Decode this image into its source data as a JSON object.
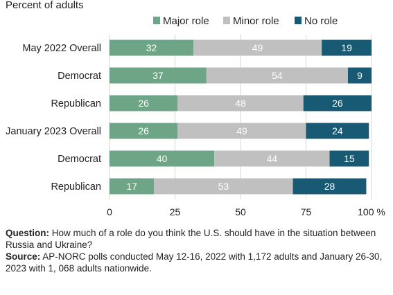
{
  "chart_data": {
    "type": "bar",
    "orientation": "horizontal",
    "stacked": true,
    "subtitle": "Percent of adults",
    "categories": [
      "May  2022 Overall",
      "Democrat",
      "Republican",
      "January 2023 Overall",
      "Democrat",
      "Republican"
    ],
    "series": [
      {
        "name": "Major role",
        "color": "#6fa587",
        "values": [
          32,
          37,
          26,
          26,
          40,
          17
        ]
      },
      {
        "name": "Minor role",
        "color": "#c0c0c0",
        "values": [
          49,
          54,
          48,
          49,
          44,
          53
        ]
      },
      {
        "name": "No role",
        "color": "#185a73",
        "values": [
          19,
          9,
          26,
          24,
          15,
          28
        ]
      }
    ],
    "xlim": [
      0,
      100
    ],
    "x_ticks": [
      "0",
      "25",
      "50",
      "75",
      "100 %"
    ],
    "grid": "vertical",
    "legend": "top-right"
  },
  "notes": {
    "question_label": "Question:",
    "question_text": "How much of a role do you think the U.S. should have in the situation between Russia and Ukraine?",
    "source_label": "Source:",
    "source_text": "AP-NORC polls conducted May 12-16, 2022 with 1,172 adults and January 26-30, 2023 with 1, 068 adults nationwide."
  }
}
